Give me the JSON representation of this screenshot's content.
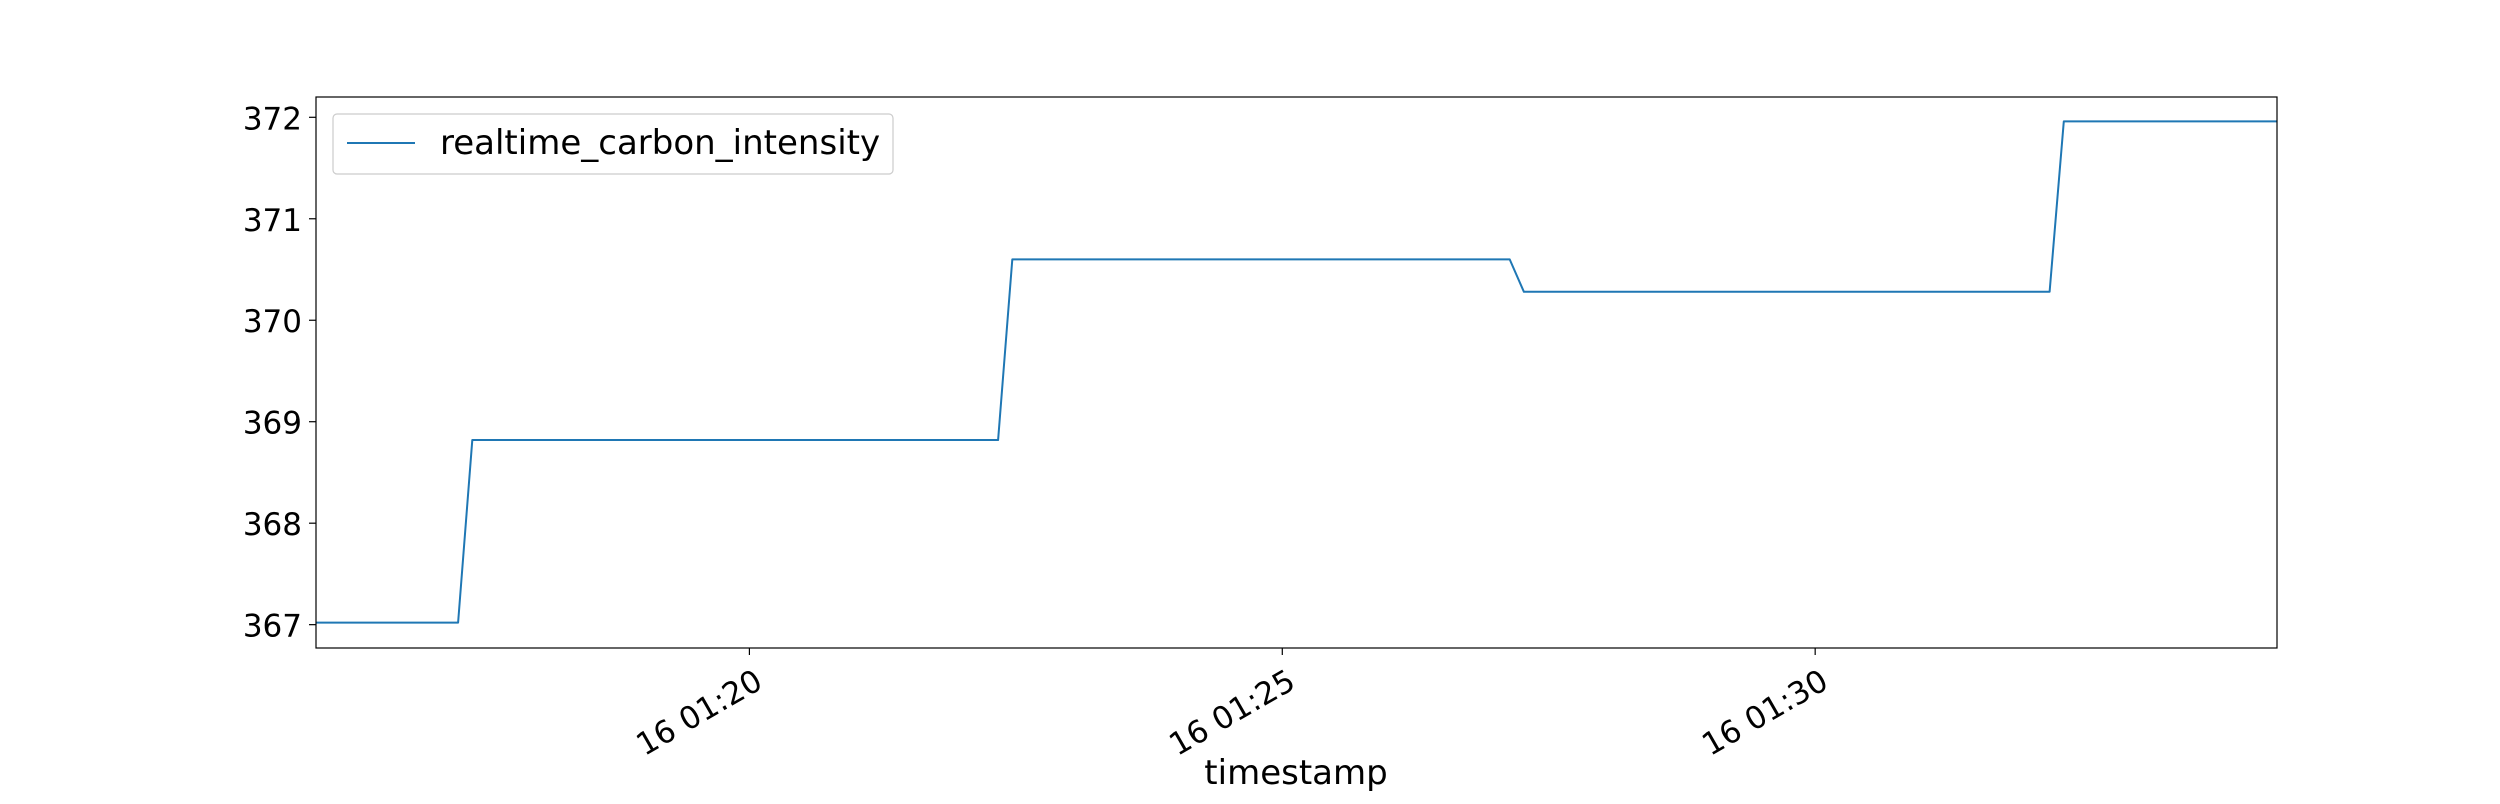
{
  "chart_data": {
    "type": "line",
    "title": "",
    "xlabel": "timestamp",
    "ylabel": "",
    "x_ticks": [
      {
        "t": "01:20:00",
        "label": "16 01:20"
      },
      {
        "t": "01:25:00",
        "label": "16 01:25"
      },
      {
        "t": "01:30:00",
        "label": "16 01:30"
      }
    ],
    "y_ticks": [
      {
        "value": 367,
        "label": "367"
      },
      {
        "value": 368,
        "label": "368"
      },
      {
        "value": 369,
        "label": "369"
      },
      {
        "value": 370,
        "label": "370"
      },
      {
        "value": 371,
        "label": "371"
      },
      {
        "value": 372,
        "label": "372"
      }
    ],
    "xlim": [
      "01:15:56",
      "01:34:20"
    ],
    "ylim": [
      366.77,
      372.2
    ],
    "grid": false,
    "legend": {
      "position": "top-left"
    },
    "series": [
      {
        "name": "realtime_carbon_intensity",
        "color": "#1f77b4",
        "points": [
          {
            "t": "01:15:56",
            "y": 367.02
          },
          {
            "t": "01:17:16",
            "y": 367.02
          },
          {
            "t": "01:17:24",
            "y": 368.82
          },
          {
            "t": "01:22:20",
            "y": 368.82
          },
          {
            "t": "01:22:28",
            "y": 370.6
          },
          {
            "t": "01:27:08",
            "y": 370.6
          },
          {
            "t": "01:27:16",
            "y": 370.28
          },
          {
            "t": "01:32:12",
            "y": 370.28
          },
          {
            "t": "01:32:20",
            "y": 371.96
          },
          {
            "t": "01:34:20",
            "y": 371.96
          }
        ]
      }
    ]
  }
}
